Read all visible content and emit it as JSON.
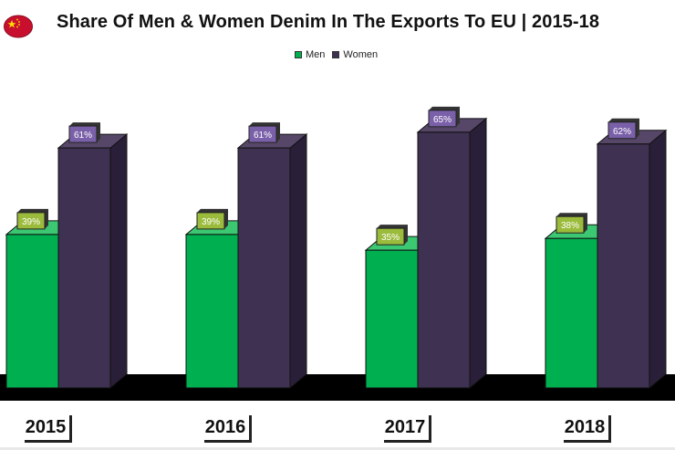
{
  "title": "Share Of Men & Women Denim In The Exports To EU | 2015-18",
  "flag_icon": "china-flag-icon",
  "colors": {
    "men": "#00b050",
    "men_side": "#007a35",
    "men_top": "#3cc872",
    "women": "#3e3151",
    "women_side": "#2a1f38",
    "women_top": "#564769",
    "floor": "#000000",
    "label_men_bg": "#9bbb3c",
    "label_women_bg": "#7a60a8"
  },
  "chart_data": {
    "type": "bar",
    "title": "Share Of Men & Women Denim In The Exports To EU | 2015-18",
    "categories": [
      "2015",
      "2016",
      "2017",
      "2018"
    ],
    "series": [
      {
        "name": "Men",
        "values": [
          39,
          39,
          35,
          38
        ],
        "labels": [
          "39%",
          "39%",
          "35%",
          "38%"
        ]
      },
      {
        "name": "Women",
        "values": [
          61,
          61,
          65,
          62
        ],
        "labels": [
          "61%",
          "61%",
          "65%",
          "62%"
        ]
      }
    ],
    "ylim": [
      0,
      100
    ],
    "legend": "top-center",
    "xlabel": "",
    "ylabel": ""
  },
  "legend": [
    {
      "label": "Men"
    },
    {
      "label": "Women"
    }
  ]
}
